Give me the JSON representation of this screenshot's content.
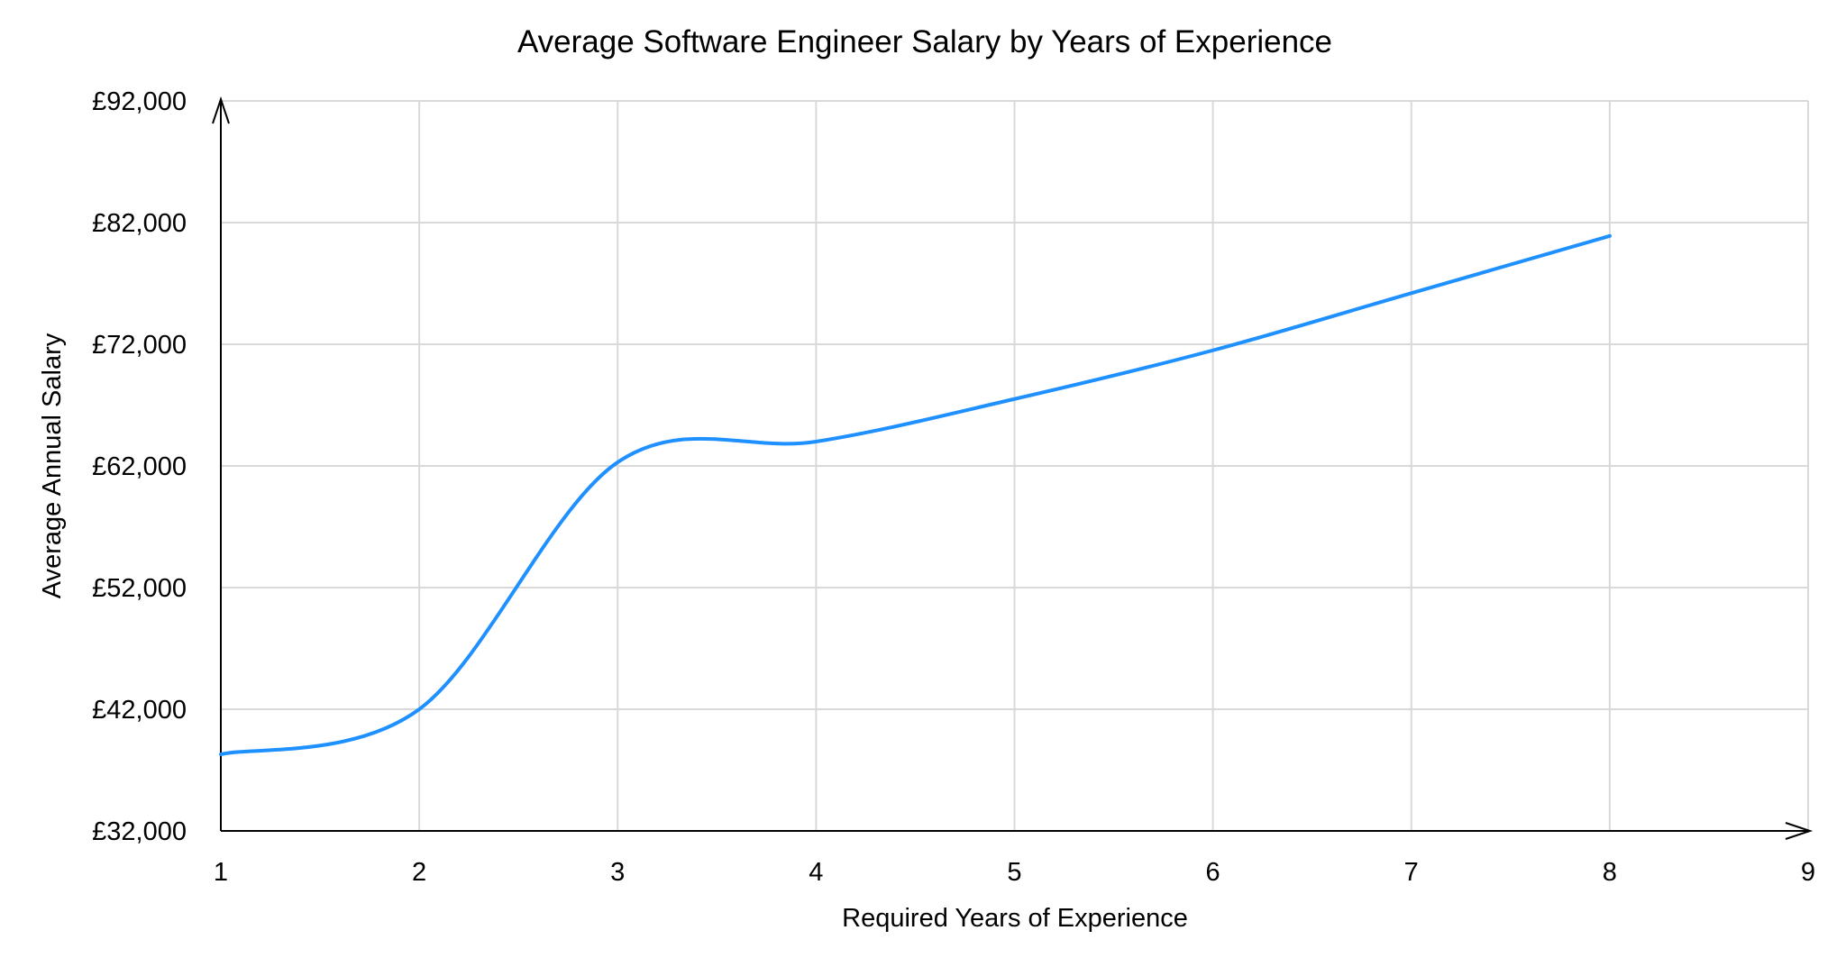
{
  "chart_data": {
    "type": "line",
    "title": "Average Software Engineer Salary by Years of Experience",
    "xlabel": "Required Years of Experience",
    "ylabel": "Average Annual Salary",
    "x": [
      1,
      2,
      3,
      4,
      5,
      6,
      7,
      8
    ],
    "series": [
      {
        "values": [
          38300,
          42000,
          62300,
          64000,
          67500,
          71500,
          76200,
          80900
        ],
        "color": "#1E90FF",
        "smooth": true
      }
    ],
    "xlim": [
      1,
      9
    ],
    "ylim": [
      32000,
      92000
    ],
    "xticks": [
      "1",
      "2",
      "3",
      "4",
      "5",
      "6",
      "7",
      "8",
      "9"
    ],
    "yticks": [
      "£32,000",
      "£42,000",
      "£52,000",
      "£62,000",
      "£72,000",
      "£82,000",
      "£92,000"
    ],
    "ytick_values": [
      32000,
      42000,
      52000,
      62000,
      72000,
      82000,
      92000
    ],
    "grid": true,
    "legend": "none"
  }
}
